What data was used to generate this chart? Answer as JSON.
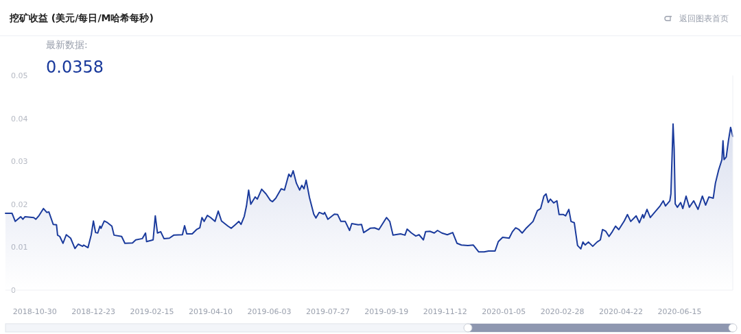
{
  "chart_data": {
    "type": "area",
    "title": "挖矿收益 (美元/每日/M哈希每秒)",
    "annotations": [
      "最新数据:",
      "0.0358",
      "返回图表首页"
    ],
    "color": "#1a3a9c",
    "xlim": [
      "2018-10-03",
      "2020-08-03"
    ],
    "ylim": [
      0,
      0.05
    ],
    "yticks": [
      0,
      0.01,
      0.02,
      0.03,
      0.04,
      0.05
    ],
    "xticks": [
      "2018-10-30",
      "2018-12-23",
      "2019-02-15",
      "2019-04-10",
      "2019-06-03",
      "2019-07-27",
      "2019-09-19",
      "2019-11-12",
      "2020-01-05",
      "2020-02-28",
      "2020-04-22",
      "2020-06-15"
    ],
    "x": [
      "2018-10-03",
      "2018-10-09",
      "2018-10-12",
      "2018-10-17",
      "2018-10-19",
      "2018-10-21",
      "2018-10-29",
      "2018-10-31",
      "2018-11-03",
      "2018-11-07",
      "2018-11-10",
      "2018-11-12",
      "2018-11-16",
      "2018-11-19",
      "2018-11-20",
      "2018-11-22",
      "2018-11-25",
      "2018-11-28",
      "2018-12-02",
      "2018-12-06",
      "2018-12-09",
      "2018-12-13",
      "2018-12-14",
      "2018-12-18",
      "2018-12-21",
      "2018-12-23",
      "2018-12-25",
      "2018-12-27",
      "2018-12-29",
      "2018-12-30",
      "2019-01-02",
      "2019-01-05",
      "2019-01-09",
      "2019-01-11",
      "2019-01-18",
      "2019-01-21",
      "2019-01-28",
      "2019-01-31",
      "2019-02-06",
      "2019-02-09",
      "2019-02-10",
      "2019-02-16",
      "2019-02-18",
      "2019-02-20",
      "2019-02-23",
      "2019-02-26",
      "2019-03-03",
      "2019-03-07",
      "2019-03-15",
      "2019-03-17",
      "2019-03-19",
      "2019-03-24",
      "2019-03-28",
      "2019-03-31",
      "2019-04-02",
      "2019-04-04",
      "2019-04-07",
      "2019-04-10",
      "2019-04-14",
      "2019-04-17",
      "2019-04-20",
      "2019-04-26",
      "2019-04-29",
      "2019-05-03",
      "2019-05-06",
      "2019-05-08",
      "2019-05-11",
      "2019-05-13",
      "2019-05-15",
      "2019-05-17",
      "2019-05-21",
      "2019-05-23",
      "2019-05-27",
      "2019-05-31",
      "2019-06-04",
      "2019-06-06",
      "2019-06-09",
      "2019-06-14",
      "2019-06-17",
      "2019-06-21",
      "2019-06-23",
      "2019-06-25",
      "2019-06-28",
      "2019-07-01",
      "2019-07-03",
      "2019-07-05",
      "2019-07-07",
      "2019-07-10",
      "2019-07-14",
      "2019-07-16",
      "2019-07-19",
      "2019-07-23",
      "2019-07-24",
      "2019-07-27",
      "2019-08-02",
      "2019-08-05",
      "2019-08-08",
      "2019-08-12",
      "2019-08-16",
      "2019-08-18",
      "2019-08-24",
      "2019-08-27",
      "2019-08-29",
      "2019-09-04",
      "2019-09-08",
      "2019-09-12",
      "2019-09-15",
      "2019-09-19",
      "2019-09-22",
      "2019-09-25",
      "2019-09-27",
      "2019-10-02",
      "2019-10-06",
      "2019-10-08",
      "2019-10-12",
      "2019-10-16",
      "2019-10-19",
      "2019-10-23",
      "2019-10-25",
      "2019-10-29",
      "2019-11-02",
      "2019-11-05",
      "2019-11-09",
      "2019-11-14",
      "2019-11-19",
      "2019-11-23",
      "2019-11-27",
      "2019-12-03",
      "2019-12-08",
      "2019-12-13",
      "2019-12-18",
      "2019-12-22",
      "2019-12-28",
      "2019-12-31",
      "2020-01-04",
      "2020-01-10",
      "2020-01-13",
      "2020-01-16",
      "2020-01-19",
      "2020-01-22",
      "2020-01-26",
      "2020-02-01",
      "2020-02-05",
      "2020-02-08",
      "2020-02-11",
      "2020-02-13",
      "2020-02-15",
      "2020-02-17",
      "2020-02-20",
      "2020-02-23",
      "2020-02-25",
      "2020-02-29",
      "2020-03-02",
      "2020-03-05",
      "2020-03-07",
      "2020-03-10",
      "2020-03-13",
      "2020-03-16",
      "2020-03-18",
      "2020-03-20",
      "2020-03-23",
      "2020-03-27",
      "2020-03-31",
      "2020-04-03",
      "2020-04-05",
      "2020-04-08",
      "2020-04-11",
      "2020-04-14",
      "2020-04-17",
      "2020-04-20",
      "2020-04-25",
      "2020-04-28",
      "2020-05-01",
      "2020-05-06",
      "2020-05-09",
      "2020-05-12",
      "2020-05-13",
      "2020-05-16",
      "2020-05-19",
      "2020-05-23",
      "2020-05-28",
      "2020-05-31",
      "2020-06-02",
      "2020-06-06",
      "2020-06-07",
      "2020-06-09",
      "2020-06-10",
      "2020-06-11",
      "2020-06-13",
      "2020-06-16",
      "2020-06-18",
      "2020-06-21",
      "2020-06-24",
      "2020-06-28",
      "2020-07-02",
      "2020-07-06",
      "2020-07-09",
      "2020-07-12",
      "2020-07-16",
      "2020-07-18",
      "2020-07-21",
      "2020-07-24",
      "2020-07-25",
      "2020-07-26",
      "2020-07-28",
      "2020-07-30",
      "2020-08-01",
      "2020-08-03"
    ],
    "values": [
      0.0179,
      0.0179,
      0.016,
      0.0171,
      0.0165,
      0.0171,
      0.0169,
      0.0165,
      0.0174,
      0.019,
      0.0181,
      0.0182,
      0.0153,
      0.0152,
      0.0128,
      0.0125,
      0.0109,
      0.0129,
      0.0121,
      0.0097,
      0.0107,
      0.0102,
      0.0105,
      0.0099,
      0.0129,
      0.0161,
      0.0134,
      0.0133,
      0.0149,
      0.0144,
      0.0161,
      0.0157,
      0.0149,
      0.0128,
      0.0125,
      0.0109,
      0.011,
      0.0117,
      0.012,
      0.0133,
      0.0113,
      0.0117,
      0.0173,
      0.0133,
      0.0136,
      0.012,
      0.0121,
      0.0128,
      0.0129,
      0.015,
      0.0131,
      0.0131,
      0.0141,
      0.0145,
      0.0169,
      0.016,
      0.0174,
      0.0169,
      0.016,
      0.0184,
      0.0161,
      0.0149,
      0.0144,
      0.0153,
      0.016,
      0.0153,
      0.0172,
      0.0196,
      0.0233,
      0.02,
      0.0217,
      0.0212,
      0.0235,
      0.0224,
      0.0209,
      0.0206,
      0.0214,
      0.0236,
      0.0233,
      0.027,
      0.0264,
      0.0278,
      0.0249,
      0.0233,
      0.0244,
      0.0236,
      0.0256,
      0.0216,
      0.0177,
      0.0168,
      0.0181,
      0.0177,
      0.0181,
      0.0165,
      0.0177,
      0.0176,
      0.016,
      0.016,
      0.0139,
      0.0155,
      0.0152,
      0.0153,
      0.0134,
      0.0144,
      0.0145,
      0.0141,
      0.0153,
      0.0169,
      0.016,
      0.0128,
      0.0129,
      0.0131,
      0.0128,
      0.0142,
      0.0133,
      0.0126,
      0.0129,
      0.0117,
      0.0136,
      0.0137,
      0.0133,
      0.0139,
      0.0133,
      0.0129,
      0.0134,
      0.0109,
      0.0105,
      0.0104,
      0.0105,
      0.0089,
      0.0089,
      0.0091,
      0.0091,
      0.0113,
      0.0123,
      0.0121,
      0.0136,
      0.0145,
      0.0141,
      0.0133,
      0.0145,
      0.016,
      0.0185,
      0.019,
      0.0219,
      0.0224,
      0.0204,
      0.0212,
      0.0203,
      0.0208,
      0.0176,
      0.0176,
      0.0173,
      0.0188,
      0.016,
      0.0157,
      0.0104,
      0.0096,
      0.0112,
      0.0105,
      0.0112,
      0.0102,
      0.0112,
      0.0117,
      0.0141,
      0.0137,
      0.0125,
      0.0136,
      0.0149,
      0.0141,
      0.0161,
      0.0176,
      0.016,
      0.0173,
      0.0157,
      0.0176,
      0.0168,
      0.0188,
      0.0169,
      0.0181,
      0.0196,
      0.0208,
      0.0196,
      0.0208,
      0.0224,
      0.0387,
      0.0329,
      0.0201,
      0.0193,
      0.0204,
      0.019,
      0.0219,
      0.0193,
      0.0208,
      0.0188,
      0.0219,
      0.0198,
      0.0217,
      0.0214,
      0.0249,
      0.028,
      0.0304,
      0.0348,
      0.0304,
      0.031,
      0.0348,
      0.0379,
      0.0358
    ]
  }
}
